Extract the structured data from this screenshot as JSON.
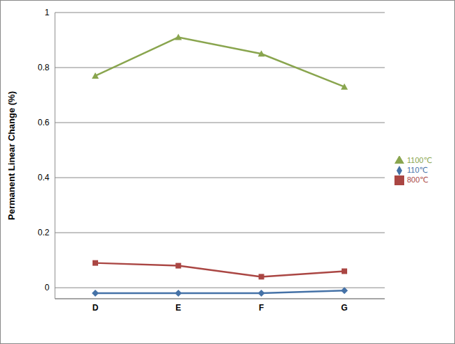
{
  "chart_data": {
    "type": "line",
    "y_label": "Permanent Linear Change (%)",
    "categories": [
      "D",
      "E",
      "F",
      "G"
    ],
    "series": [
      {
        "name": "110℃",
        "color": "#4572A7",
        "marker": "diamond",
        "values": [
          -0.02,
          -0.02,
          -0.02,
          -0.01
        ]
      },
      {
        "name": "800℃",
        "color": "#AA4643",
        "marker": "square",
        "values": [
          0.09,
          0.08,
          0.04,
          0.06
        ]
      },
      {
        "name": "1100℃",
        "color": "#89A54E",
        "marker": "triangle",
        "values": [
          0.77,
          0.91,
          0.85,
          0.73
        ]
      }
    ],
    "ylim": [
      -0.04,
      1
    ],
    "yticks": [
      0,
      0.2,
      0.4,
      0.6,
      0.8,
      1
    ],
    "grid": true,
    "legend": "right"
  }
}
